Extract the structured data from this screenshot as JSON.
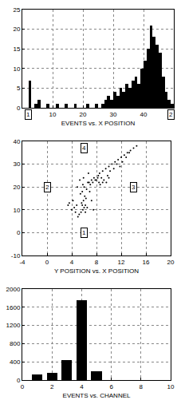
{
  "chart_data": [
    {
      "type": "histogram",
      "x_label": "EVENTS vs. X POSITION",
      "color": "#000000",
      "grid": true,
      "bins": [
        0,
        1,
        2,
        3,
        4,
        5,
        6,
        7,
        8,
        9,
        10,
        11,
        12,
        13,
        14,
        15,
        16,
        17,
        18,
        19,
        20,
        21,
        22,
        23,
        24,
        25,
        26,
        27,
        28,
        29,
        30,
        31,
        32,
        33,
        34,
        35,
        36,
        37,
        38,
        39,
        40,
        41,
        42,
        43,
        44,
        45,
        46,
        47,
        48,
        49,
        50
      ],
      "counts": [
        0,
        0,
        7,
        0,
        1,
        2,
        0,
        0,
        1,
        0,
        0,
        1,
        0,
        0,
        1,
        0,
        0,
        1,
        0,
        0,
        0,
        1,
        0,
        0,
        1,
        0,
        1,
        2,
        3,
        2,
        4,
        3,
        5,
        4,
        6,
        5,
        7,
        8,
        6,
        10,
        12,
        15,
        21,
        18,
        16,
        14,
        8,
        4,
        2,
        1
      ],
      "xlim": [
        0,
        50
      ],
      "xticks": [
        10,
        20,
        30,
        40
      ],
      "ylim": [
        0,
        25
      ],
      "yticks": [
        0,
        5,
        10,
        15,
        20,
        25
      ],
      "annotations": [
        {
          "text": "1",
          "x": 2
        },
        {
          "text": "2",
          "x": 49
        }
      ]
    },
    {
      "type": "scatter",
      "x_label": "Y POSITION vs. X POSITION",
      "color": "#000000",
      "grid": true,
      "x": [
        5.2,
        5.5,
        5.8,
        6.0,
        6.2,
        5.6,
        5.9,
        6.3,
        6.1,
        5.4,
        5.7,
        6.4,
        6.0,
        5.8,
        6.6,
        5.3,
        5.9,
        6.2,
        6.5,
        5.7,
        6.8,
        7.2,
        7.6,
        8.0,
        8.4,
        8.8,
        9.2,
        9.6,
        10.0,
        7.0,
        7.4,
        7.8,
        8.2,
        8.6,
        9.0,
        4.0,
        4.4,
        4.8,
        3.6,
        4.2,
        4.6,
        3.4,
        8.5,
        9.0,
        9.5,
        10.0,
        10.5,
        11.0,
        11.5,
        12.0,
        12.5,
        13.0,
        13.5,
        14.0,
        10.8,
        11.3,
        12.2,
        12.8,
        13.3,
        9.8,
        11.8,
        14.5,
        7.2,
        6.9,
        5.0,
        8.3,
        10.2,
        4.9,
        6.7,
        7.5
      ],
      "y": [
        8,
        9,
        10,
        11,
        12,
        13,
        14,
        15,
        16,
        17,
        18,
        19,
        20,
        21,
        22,
        23,
        24,
        9,
        11,
        12,
        22,
        23,
        24,
        23,
        22,
        24,
        23,
        22,
        24,
        21,
        22,
        23,
        24,
        21,
        22,
        10,
        11,
        12,
        13,
        14,
        9,
        12,
        26,
        27,
        28,
        29,
        30,
        31,
        32,
        33,
        34,
        35,
        36,
        37,
        28,
        30,
        31,
        33,
        35,
        25,
        29,
        38,
        14,
        18,
        7,
        25,
        27,
        20,
        26,
        10
      ],
      "xlim": [
        -4,
        20
      ],
      "xticks": [
        -4,
        0,
        4,
        8,
        12,
        16,
        20
      ],
      "ylim": [
        -10,
        40
      ],
      "yticks": [
        -10,
        0,
        10,
        20,
        30,
        40
      ],
      "annotations": [
        {
          "text": "1",
          "x": 6,
          "y": 0
        },
        {
          "text": "2",
          "x": 0,
          "y": 20
        },
        {
          "text": "3",
          "x": 14,
          "y": 20
        },
        {
          "text": "4",
          "x": 6,
          "y": 37
        }
      ]
    },
    {
      "type": "bar",
      "x_label": "EVENTS vs. CHANNEL",
      "color": "#000000",
      "grid": true,
      "x": [
        1,
        2,
        3,
        4,
        5
      ],
      "values": [
        130,
        150,
        430,
        1750,
        200
      ],
      "xlim": [
        0,
        10
      ],
      "xticks": [
        0,
        2,
        4,
        6,
        8,
        10
      ],
      "ylim": [
        0,
        2000
      ],
      "yticks": [
        0,
        400,
        800,
        1200,
        1600,
        2000
      ]
    }
  ]
}
